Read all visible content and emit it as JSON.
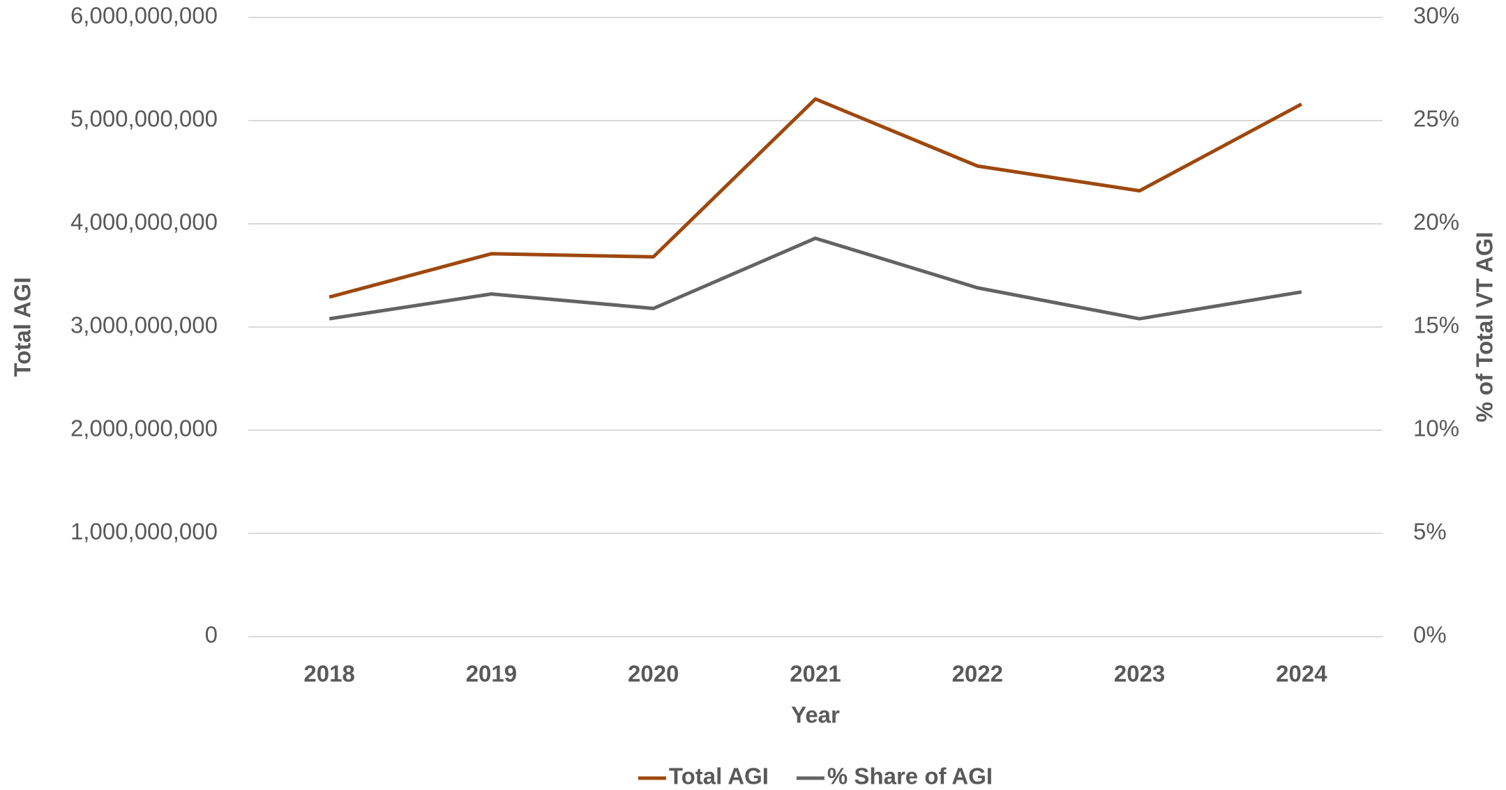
{
  "chart_data": {
    "type": "line",
    "categories": [
      "2018",
      "2019",
      "2020",
      "2021",
      "2022",
      "2023",
      "2024"
    ],
    "x_label": "Year",
    "y_label": "Total AGI",
    "y2_label": "% of Total VT AGI",
    "series": [
      {
        "name": "Total AGI",
        "color": "#9e480e",
        "values": [
          3290000000,
          3710000000,
          3680000000,
          5210000000,
          4560000000,
          4320000000,
          5160000000
        ]
      },
      {
        "name": "% Share of AGI",
        "color": "#636363",
        "axis": "y2",
        "values": [
          15.4,
          16.6,
          15.9,
          19.3,
          16.9,
          15.4,
          16.7
        ]
      }
    ],
    "ylim": [
      0,
      6000000000
    ],
    "yticks": [
      0,
      {
        "value": 1000000000,
        "label": "1,000,000,000"
      },
      {
        "value": 2000000000,
        "label": "2,000,000,000"
      },
      {
        "value": 3000000000,
        "label": "3,000,000,000"
      },
      {
        "value": 4000000000,
        "label": "4,000,000,000"
      },
      {
        "value": 5000000000,
        "label": "5,000,000,000"
      },
      {
        "value": 6000000000,
        "label": "6,000,000,000"
      }
    ],
    "y2lim": [
      0,
      30
    ],
    "y2ticks": [
      {
        "value": 0,
        "label": "0%"
      },
      {
        "value": 5,
        "label": "5%"
      },
      {
        "value": 10,
        "label": "10%"
      },
      {
        "value": 15,
        "label": "15%"
      },
      {
        "value": 20,
        "label": "20%"
      },
      {
        "value": 25,
        "label": "25%"
      },
      {
        "value": 30,
        "label": "30%"
      }
    ],
    "grid": true,
    "legend": "bottom"
  }
}
